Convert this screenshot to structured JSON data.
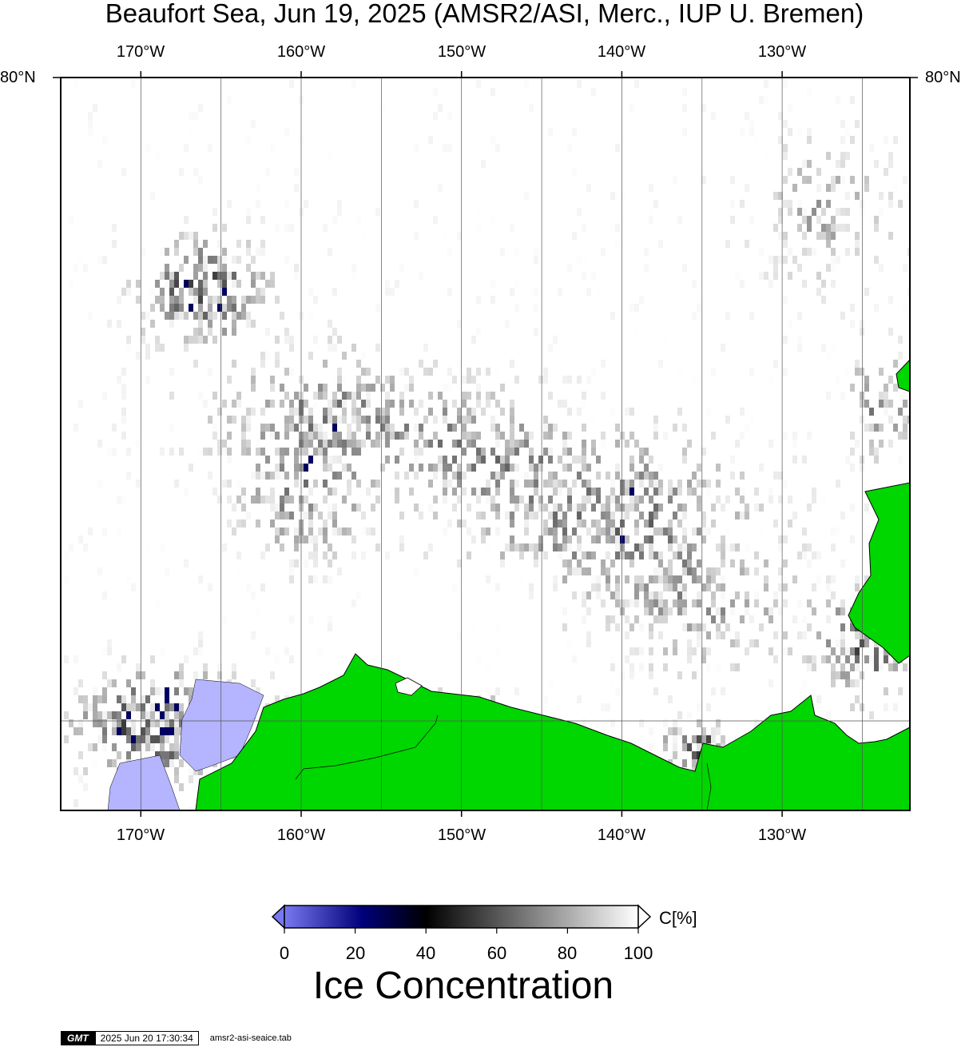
{
  "title": "Beaufort Sea, Jun 19, 2025 (AMSR2/ASI, Merc., IUP U. Bremen)",
  "longitude_labels": [
    "170°W",
    "160°W",
    "150°W",
    "140°W",
    "130°W"
  ],
  "latitude_label": "80°N",
  "colorbar": {
    "tick_labels": [
      "0",
      "20",
      "40",
      "60",
      "80",
      "100"
    ],
    "unit": "C[%]",
    "title": "Ice Concentration",
    "colors": [
      "#7878f0",
      "#00007a",
      "#000000",
      "#808080",
      "#ffffff"
    ]
  },
  "colors": {
    "land": "#00d600",
    "open_water": "#ffffff",
    "low_concentration": "#b4b4ff"
  },
  "timestamp": {
    "logo": "GMT",
    "date": "2025 Jun 20 17:30:34",
    "file": "amsr2-asi-seaice.tab"
  }
}
